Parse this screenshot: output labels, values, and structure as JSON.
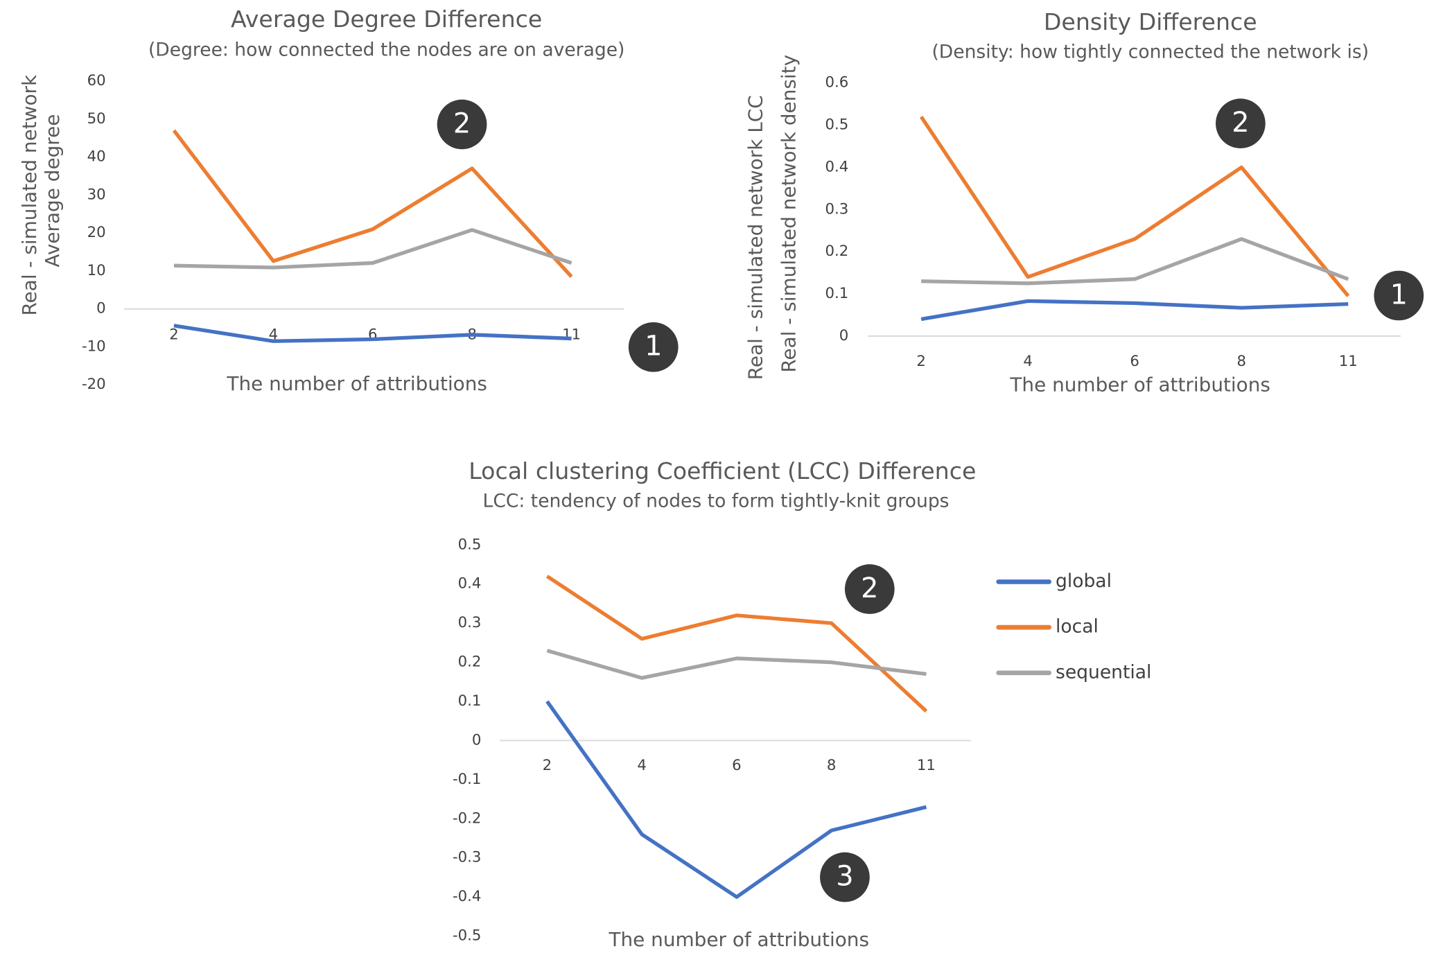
{
  "chart_data": [
    {
      "type": "line",
      "title": "Average Degree Difference",
      "subtitle": "(Degree: how connected the nodes are on average)",
      "x_label": "The number of attributions",
      "y_label": [
        "Real - simulated network",
        "Average degree"
      ],
      "categories": [
        "2",
        "4",
        "6",
        "8",
        "11"
      ],
      "series": [
        {
          "color": "#4472c4",
          "values": [
            -4.4,
            -8.5,
            -8,
            -6.8,
            -7.8
          ]
        },
        {
          "color": "#ed7d31",
          "values": [
            47,
            12.6,
            21,
            37,
            8.5
          ]
        },
        {
          "color": "#a5a5a5",
          "values": [
            11.4,
            10.9,
            12.1,
            20.8,
            12.1
          ]
        }
      ],
      "ylim": [
        -20,
        60
      ],
      "yticks": [
        -20,
        -10,
        0,
        10,
        20,
        30,
        40,
        50,
        60
      ],
      "grid": false,
      "annotations": [
        "2",
        "1"
      ]
    },
    {
      "type": "line",
      "title": "Density Difference",
      "subtitle": "(Density: how tightly connected the network is)",
      "x_label": "The number of attributions",
      "y_label": [
        "Real - simulated network LCC",
        "Real - simulated network density"
      ],
      "categories": [
        "2",
        "4",
        "6",
        "8",
        "11"
      ],
      "series": [
        {
          "color": "#4472c4",
          "values": [
            0.04,
            0.083,
            0.078,
            0.067,
            0.076
          ]
        },
        {
          "color": "#ed7d31",
          "values": [
            0.52,
            0.14,
            0.23,
            0.4,
            0.095
          ]
        },
        {
          "color": "#a5a5a5",
          "values": [
            0.13,
            0.125,
            0.135,
            0.23,
            0.135
          ]
        }
      ],
      "ylim": [
        0,
        0.6
      ],
      "yticks": [
        0,
        0.1,
        0.2,
        0.3,
        0.4,
        0.5,
        0.6
      ],
      "grid": false,
      "annotations": [
        "2",
        "1"
      ]
    },
    {
      "type": "line",
      "title": "Local clustering Coefficient (LCC) Difference",
      "subtitle": "LCC: tendency of nodes to form tightly-knit groups",
      "x_label": "The number of attributions",
      "categories": [
        "2",
        "4",
        "6",
        "8",
        "11"
      ],
      "series": [
        {
          "name": "global",
          "color": "#4472c4",
          "values": [
            0.1,
            -0.24,
            -0.4,
            -0.23,
            -0.17
          ]
        },
        {
          "name": "local",
          "color": "#ed7d31",
          "values": [
            0.42,
            0.26,
            0.32,
            0.3,
            0.075
          ]
        },
        {
          "name": "sequential",
          "color": "#a5a5a5",
          "values": [
            0.23,
            0.16,
            0.21,
            0.2,
            0.17
          ]
        }
      ],
      "ylim": [
        -0.5,
        0.5
      ],
      "yticks": [
        -0.5,
        -0.4,
        -0.3,
        -0.2,
        -0.1,
        0,
        0.1,
        0.2,
        0.3,
        0.4,
        0.5
      ],
      "grid": false,
      "legend": "right",
      "annotations": [
        "2",
        "3"
      ]
    }
  ]
}
